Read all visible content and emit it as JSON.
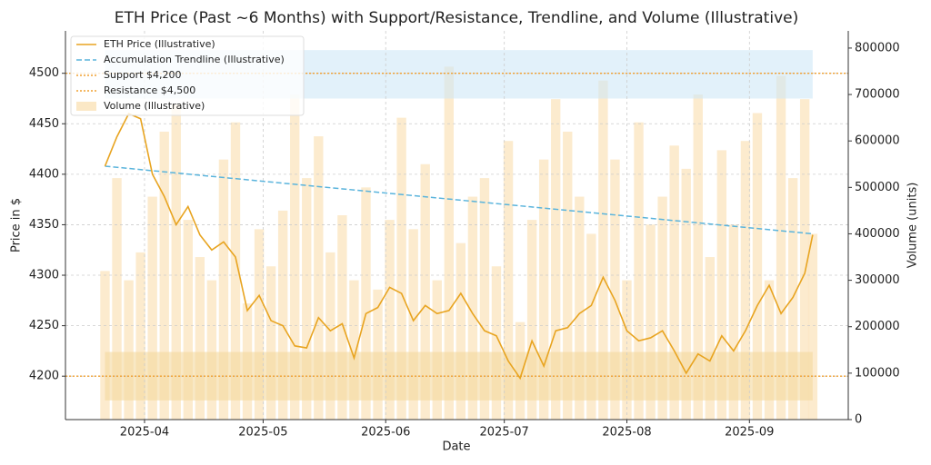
{
  "chart_data": {
    "type": "line",
    "title": "ETH Price (Past ~6 Months) with Support/Resistance, Trendline, and Volume (Illustrative)",
    "x_label": "Date",
    "y_label": "Price in $",
    "y2_label": "Volume (units)",
    "x": [
      "2025-03-22",
      "2025-03-25",
      "2025-03-28",
      "2025-03-31",
      "2025-04-03",
      "2025-04-06",
      "2025-04-09",
      "2025-04-12",
      "2025-04-15",
      "2025-04-18",
      "2025-04-21",
      "2025-04-24",
      "2025-04-27",
      "2025-04-30",
      "2025-05-03",
      "2025-05-06",
      "2025-05-09",
      "2025-05-12",
      "2025-05-15",
      "2025-05-18",
      "2025-05-21",
      "2025-05-24",
      "2025-05-27",
      "2025-05-30",
      "2025-06-02",
      "2025-06-05",
      "2025-06-08",
      "2025-06-11",
      "2025-06-14",
      "2025-06-17",
      "2025-06-20",
      "2025-06-23",
      "2025-06-26",
      "2025-06-29",
      "2025-07-02",
      "2025-07-05",
      "2025-07-08",
      "2025-07-11",
      "2025-07-14",
      "2025-07-17",
      "2025-07-20",
      "2025-07-23",
      "2025-07-26",
      "2025-07-29",
      "2025-08-01",
      "2025-08-04",
      "2025-08-07",
      "2025-08-10",
      "2025-08-13",
      "2025-08-16",
      "2025-08-19",
      "2025-08-22",
      "2025-08-25",
      "2025-08-28",
      "2025-08-31",
      "2025-09-03",
      "2025-09-06",
      "2025-09-09",
      "2025-09-12",
      "2025-09-15",
      "2025-09-17"
    ],
    "series": [
      {
        "name": "ETH Price (Illustrative)",
        "color": "#e8a420",
        "values": [
          4408,
          4437,
          4460,
          4455,
          4400,
          4378,
          4350,
          4368,
          4340,
          4325,
          4333,
          4318,
          4265,
          4280,
          4255,
          4250,
          4230,
          4228,
          4258,
          4245,
          4252,
          4218,
          4262,
          4268,
          4288,
          4282,
          4255,
          4270,
          4262,
          4265,
          4282,
          4262,
          4245,
          4240,
          4215,
          4198,
          4235,
          4210,
          4245,
          4248,
          4262,
          4270,
          4298,
          4275,
          4245,
          4235,
          4238,
          4245,
          4225,
          4203,
          4222,
          4215,
          4240,
          4225,
          4245,
          4270,
          4290,
          4262,
          4278,
          4302,
          4340
        ]
      }
    ],
    "trendline": {
      "name": "Accumulation Trendline (Illustrative)",
      "color": "#5ab4dc",
      "x": [
        "2025-03-22",
        "2025-09-17"
      ],
      "values": [
        4408,
        4341
      ]
    },
    "levels": [
      {
        "name": "Support $4,200",
        "value": 4200,
        "color": "#f0a030"
      },
      {
        "name": "Resistance $4,500",
        "value": 4500,
        "color": "#f0a030"
      }
    ],
    "zones": [
      {
        "range": [
          4176,
          4224
        ],
        "color": "#f3d89e"
      },
      {
        "range": [
          4475,
          4523
        ],
        "color": "#cfe7f6"
      }
    ],
    "volume": {
      "name": "Volume (Illustrative)",
      "color": "#fbe8c6",
      "axis": "y2",
      "values": [
        320000,
        520000,
        300000,
        360000,
        480000,
        620000,
        680000,
        430000,
        350000,
        300000,
        560000,
        640000,
        250000,
        410000,
        330000,
        450000,
        700000,
        520000,
        610000,
        360000,
        440000,
        300000,
        500000,
        280000,
        430000,
        650000,
        410000,
        550000,
        300000,
        760000,
        380000,
        480000,
        520000,
        330000,
        600000,
        210000,
        430000,
        560000,
        690000,
        620000,
        480000,
        400000,
        730000,
        560000,
        300000,
        640000,
        420000,
        480000,
        590000,
        540000,
        700000,
        350000,
        580000,
        420000,
        600000,
        660000,
        300000,
        740000,
        520000,
        690000,
        400000
      ]
    },
    "xlim": [
      "2025-03-12",
      "2025-09-26"
    ],
    "xticks": [
      {
        "value": "2025-04-01",
        "label": "2025-04"
      },
      {
        "value": "2025-05-01",
        "label": "2025-05"
      },
      {
        "value": "2025-06-01",
        "label": "2025-06"
      },
      {
        "value": "2025-07-01",
        "label": "2025-07"
      },
      {
        "value": "2025-08-01",
        "label": "2025-08"
      },
      {
        "value": "2025-09-01",
        "label": "2025-09"
      }
    ],
    "ylim": [
      4157,
      4542
    ],
    "yticks": [
      4200,
      4250,
      4300,
      4350,
      4400,
      4450,
      4500
    ],
    "y2lim": [
      0,
      837000
    ],
    "y2ticks": [
      0,
      100000,
      200000,
      300000,
      400000,
      500000,
      600000,
      700000,
      800000
    ],
    "grid": true,
    "legend": "upper left"
  }
}
